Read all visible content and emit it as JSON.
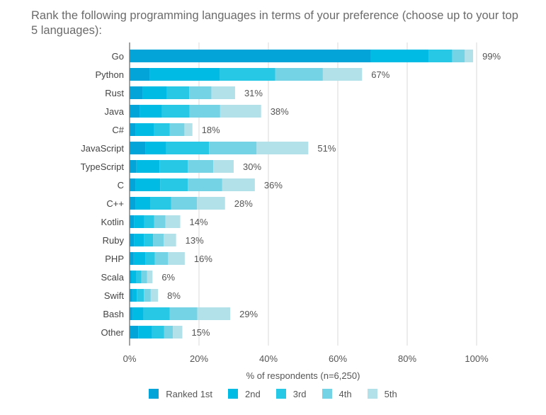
{
  "chart_data": {
    "type": "bar",
    "orientation": "horizontal",
    "stacked": true,
    "title": "Rank the following programming languages in terms of your preference (choose up to your top 5 languages):",
    "xlabel": "% of respondents (n=6,250)",
    "ylabel": "",
    "xlim": [
      0,
      100
    ],
    "x_ticks": [
      "0%",
      "20%",
      "40%",
      "60%",
      "80%",
      "100%"
    ],
    "x_tick_values": [
      0,
      20,
      40,
      60,
      80,
      100
    ],
    "grid": true,
    "legend_position": "bottom",
    "categories": [
      "Go",
      "Python",
      "Rust",
      "Java",
      "C#",
      "JavaScript",
      "TypeScript",
      "C",
      "C++",
      "Kotlin",
      "Ruby",
      "PHP",
      "Scala",
      "Swift",
      "Bash",
      "Other"
    ],
    "totals_labels": [
      "99%",
      "67%",
      "31%",
      "38%",
      "18%",
      "51%",
      "30%",
      "36%",
      "28%",
      "14%",
      "13%",
      "16%",
      "6%",
      "8%",
      "29%",
      "15%"
    ],
    "series": [
      {
        "name": "Ranked 1st",
        "color": "#03a4d8",
        "values": [
          69.5,
          5.8,
          3.8,
          3.0,
          1.8,
          4.5,
          2.0,
          1.8,
          1.8,
          1.3,
          1.3,
          1.2,
          0.6,
          0.8,
          0.8,
          2.5
        ]
      },
      {
        "name": "2nd",
        "color": "#00bce5",
        "values": [
          16.7,
          20.2,
          6.9,
          6.3,
          5.3,
          6.0,
          6.6,
          7.0,
          4.2,
          2.9,
          2.8,
          3.3,
          1.4,
          1.3,
          3.2,
          4.0
        ]
      },
      {
        "name": "3rd",
        "color": "#26c8e5",
        "values": [
          6.8,
          16.0,
          6.5,
          8.0,
          4.5,
          12.4,
          8.2,
          8.0,
          6.0,
          2.9,
          2.7,
          2.8,
          1.4,
          2.0,
          7.6,
          3.4
        ]
      },
      {
        "name": "4th",
        "color": "#75d3e6",
        "values": [
          3.6,
          13.7,
          6.4,
          8.8,
          4.2,
          13.7,
          7.3,
          9.9,
          7.4,
          3.2,
          3.0,
          3.8,
          1.6,
          2.0,
          7.9,
          2.6
        ]
      },
      {
        "name": "5th",
        "color": "#b3e1ea",
        "values": [
          2.4,
          11.3,
          6.8,
          11.8,
          2.3,
          14.9,
          5.9,
          9.4,
          8.1,
          4.3,
          3.6,
          4.8,
          1.6,
          2.1,
          9.5,
          2.7
        ]
      }
    ]
  }
}
